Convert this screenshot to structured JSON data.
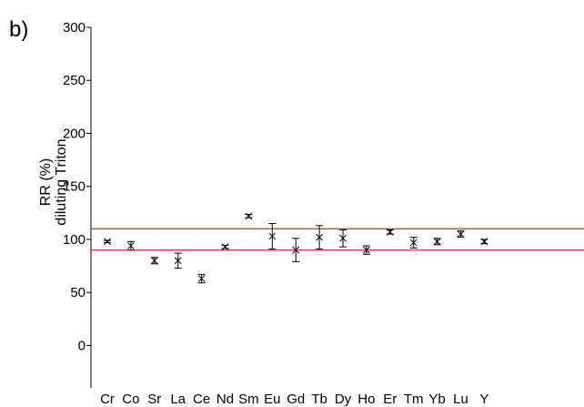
{
  "panel_label": "b)",
  "chart_data": {
    "type": "scatter",
    "title": "",
    "ylabel_lines": [
      "RR (%)",
      "diluting Triton"
    ],
    "xlabel": "",
    "ylim": [
      -40,
      300
    ],
    "yticks": [
      0,
      50,
      100,
      150,
      200,
      250,
      300
    ],
    "ytick_labels": [
      "0",
      "50",
      "100",
      "150",
      "200",
      "250",
      "300"
    ],
    "grid": false,
    "legend": "none",
    "reference_lines": [
      90,
      110
    ],
    "reference_line_color": "#e8393a",
    "marker": "x",
    "marker_color": "#000000",
    "categories": [
      "Cr",
      "Co",
      "Sr",
      "La",
      "Ce",
      "Nd",
      "Sm",
      "Eu",
      "Gd",
      "Tb",
      "Dy",
      "Ho",
      "Er",
      "Tm",
      "Yb",
      "Lu",
      "Y"
    ],
    "values": [
      98,
      94,
      80,
      80,
      63,
      93,
      122,
      103,
      90,
      102,
      101,
      90,
      107,
      97,
      98,
      105,
      98
    ],
    "error": [
      1,
      4,
      3,
      7,
      4,
      1.5,
      1.5,
      12,
      11,
      11,
      8,
      4,
      2,
      5,
      3,
      3,
      2
    ]
  }
}
